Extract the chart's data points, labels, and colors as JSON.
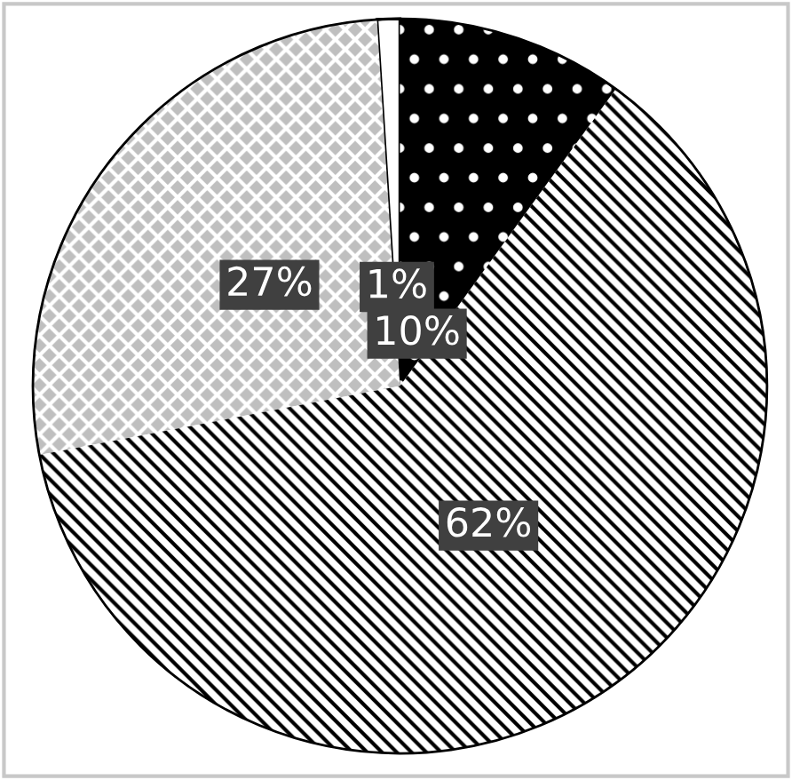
{
  "chart_data": {
    "type": "pie",
    "categories": [
      null,
      null,
      null,
      null
    ],
    "values": [
      1,
      27,
      62,
      10
    ],
    "colors": [
      "#ffffff",
      "#bfbfbf",
      "#ffffff",
      "#000000"
    ],
    "value_labels": [
      "1%",
      "27%",
      "62%",
      "10%"
    ]
  }
}
